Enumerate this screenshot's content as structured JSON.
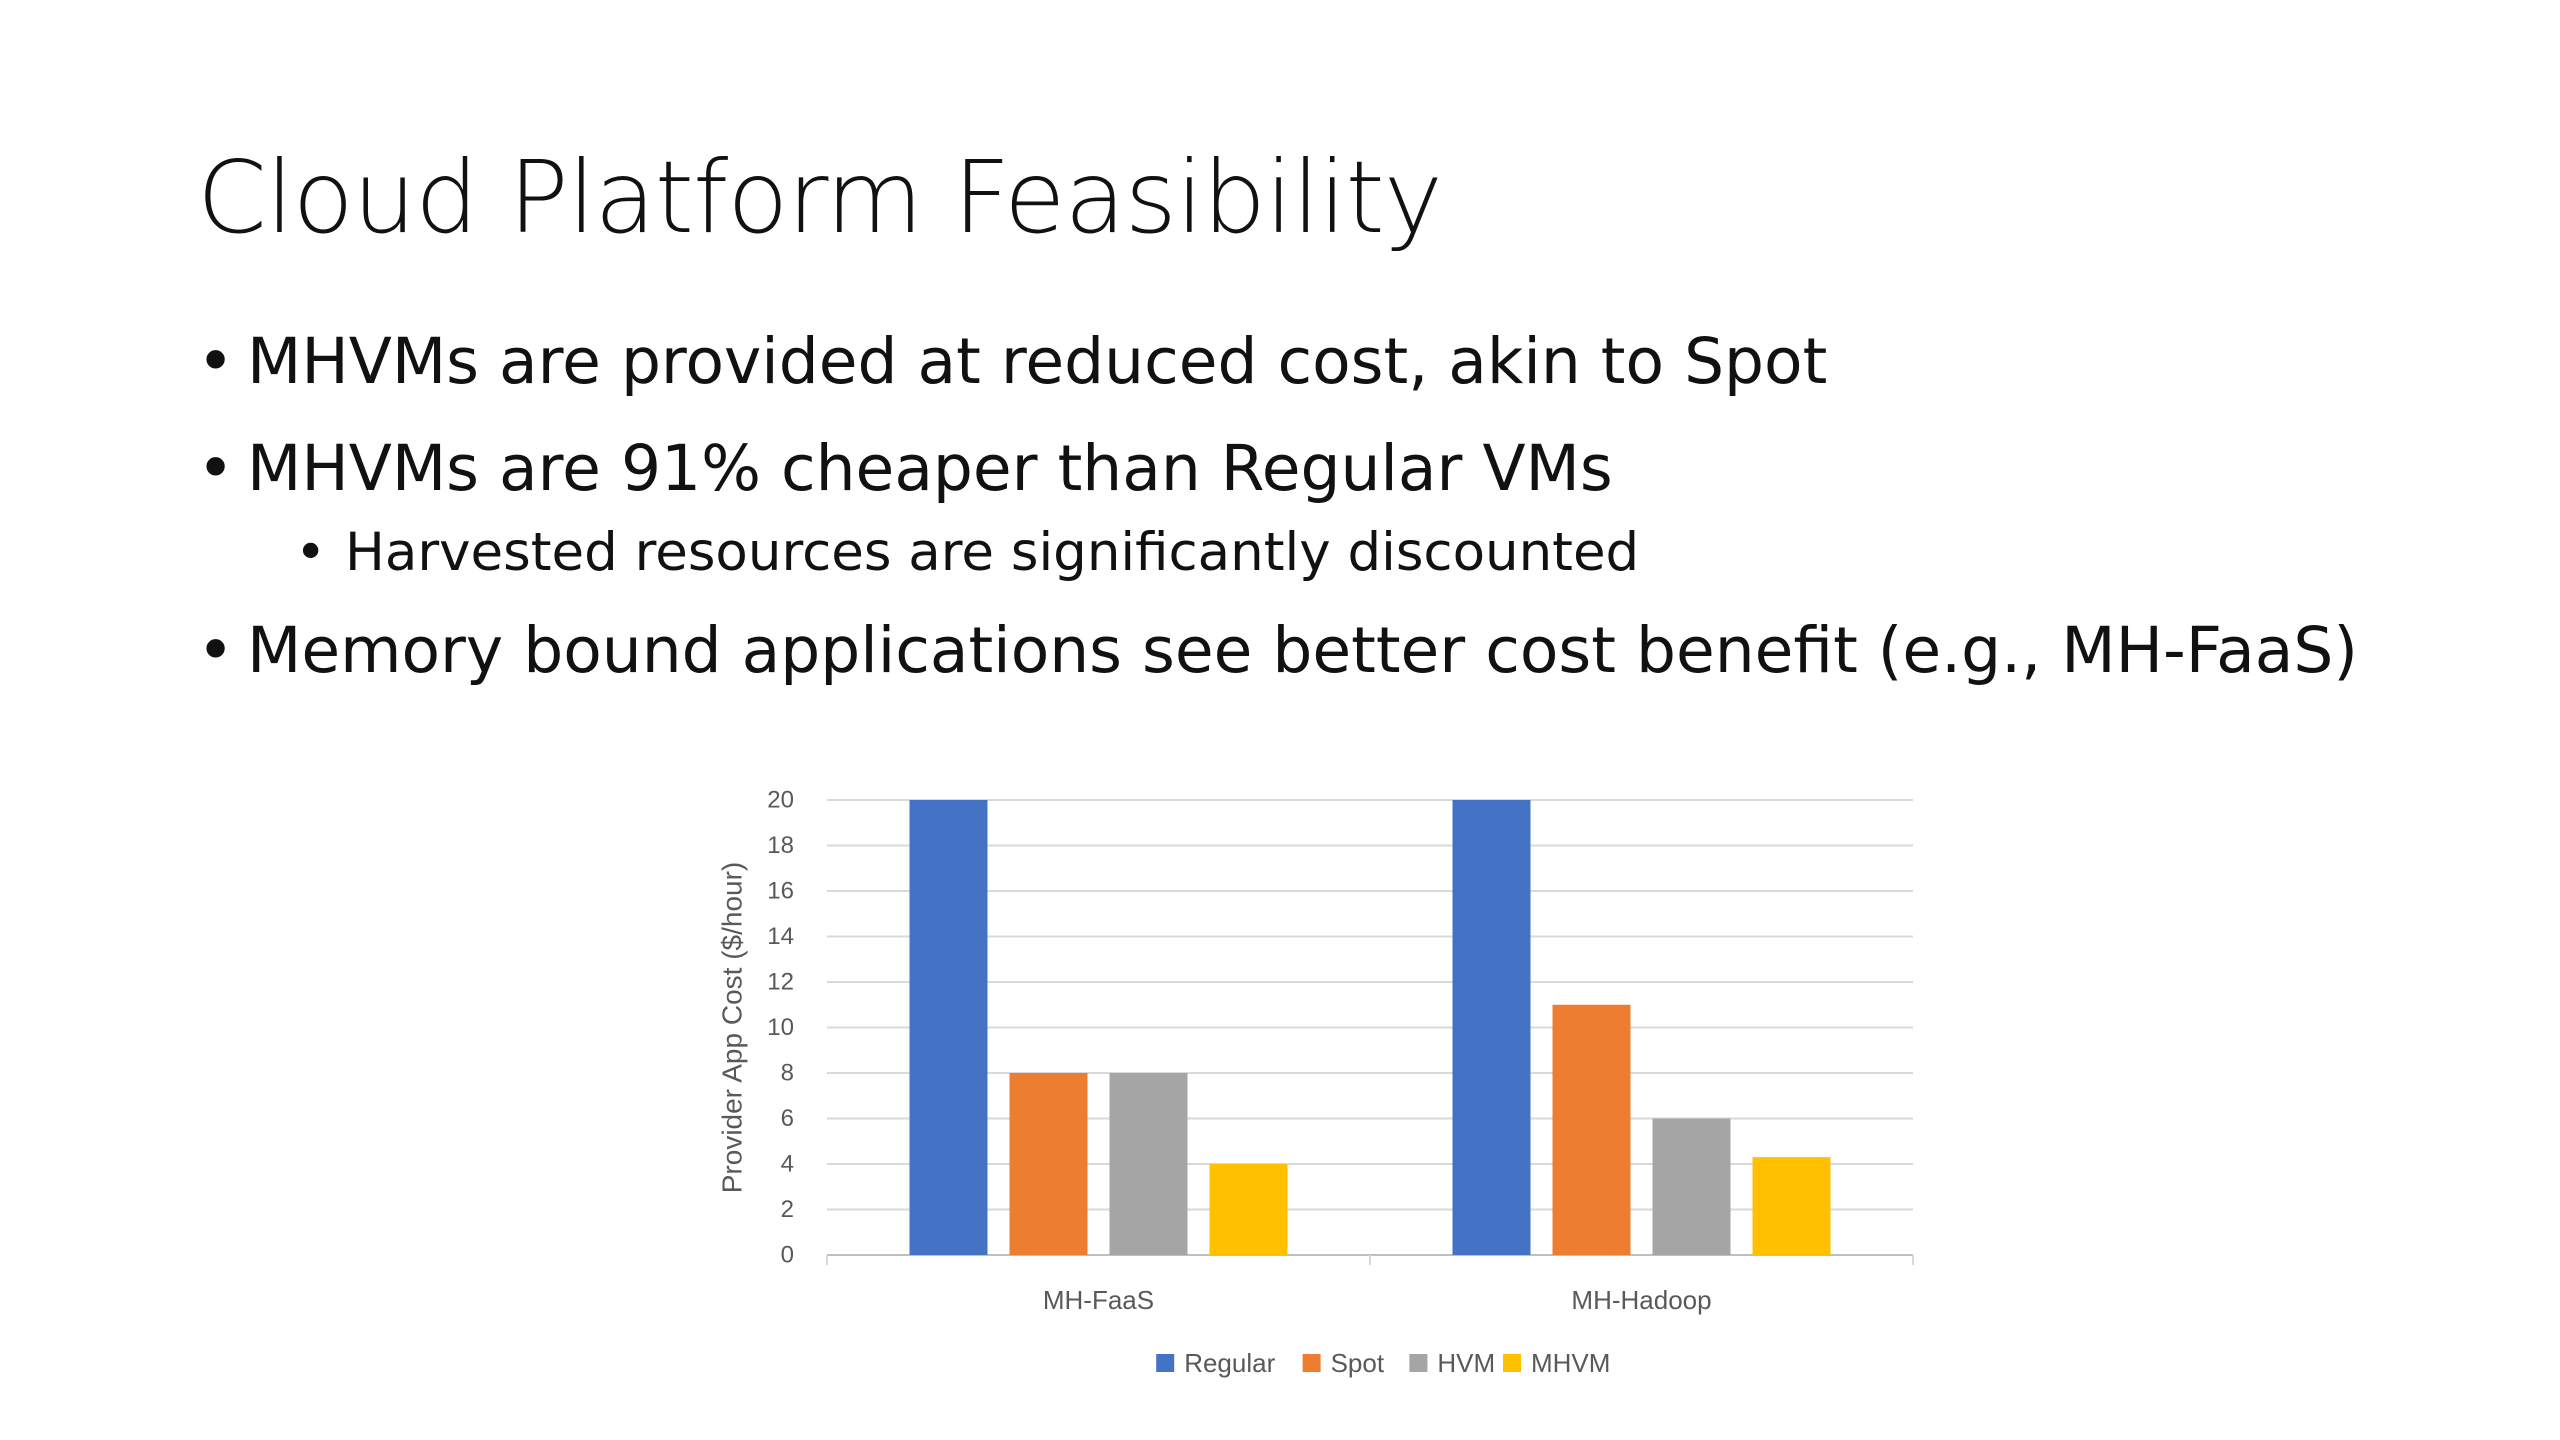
{
  "slide": {
    "title": "Cloud Platform Feasibility",
    "bullets": [
      {
        "level": 1,
        "marker": "•",
        "text": "MHVMs are provided at reduced cost, akin to Spot"
      },
      {
        "level": 1,
        "marker": "•",
        "text": "MHVMs are 91% cheaper than Regular VMs"
      },
      {
        "level": 2,
        "marker": "•",
        "text": "Harvested resources are significantly discounted"
      },
      {
        "level": 1,
        "marker": "•",
        "text": "Memory bound applications see better cost benefit (e.g., MH-FaaS)"
      }
    ]
  },
  "chart_data": {
    "type": "bar",
    "title": "",
    "xlabel": "",
    "ylabel": "Provider App Cost ($/hour)",
    "categories": [
      "MH-FaaS",
      "MH-Hadoop"
    ],
    "series": [
      {
        "name": "Regular",
        "color": "#4472C4",
        "values": [
          20,
          20
        ]
      },
      {
        "name": "Spot",
        "color": "#ED7D31",
        "values": [
          8,
          11
        ]
      },
      {
        "name": "HVM",
        "color": "#A5A5A5",
        "values": [
          8,
          6
        ]
      },
      {
        "name": "MHVM",
        "color": "#FFC000",
        "values": [
          4,
          4.3
        ]
      }
    ],
    "ylim": [
      0,
      20
    ],
    "yticks": [
      0,
      2,
      4,
      6,
      8,
      10,
      12,
      14,
      16,
      18,
      20
    ],
    "grid": true,
    "legend": "bottom"
  }
}
